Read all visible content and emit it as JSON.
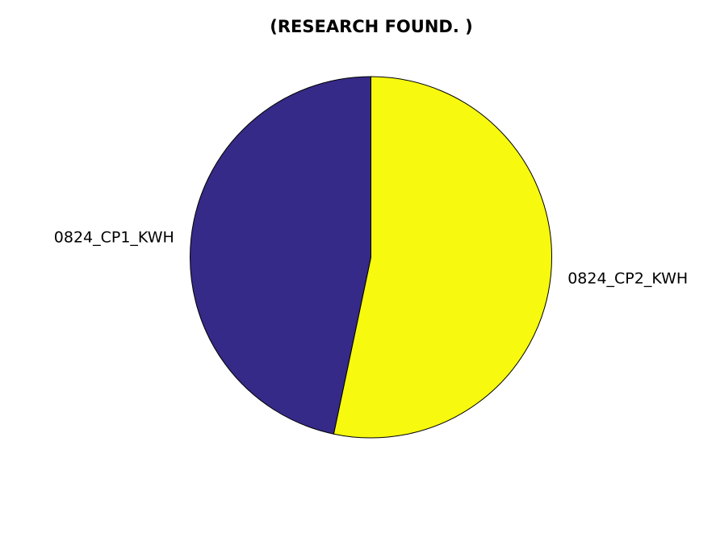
{
  "chart_data": {
    "type": "pie",
    "title": "(RESEARCH FOUND. )",
    "start": "top",
    "direction": "clockwise",
    "slices": [
      {
        "label": "0824_CP2_KWH",
        "value": 53.3,
        "color": "#F7F90F"
      },
      {
        "label": "0824_CP1_KWH",
        "value": 46.7,
        "color": "#352A87"
      }
    ],
    "legend": "none"
  }
}
